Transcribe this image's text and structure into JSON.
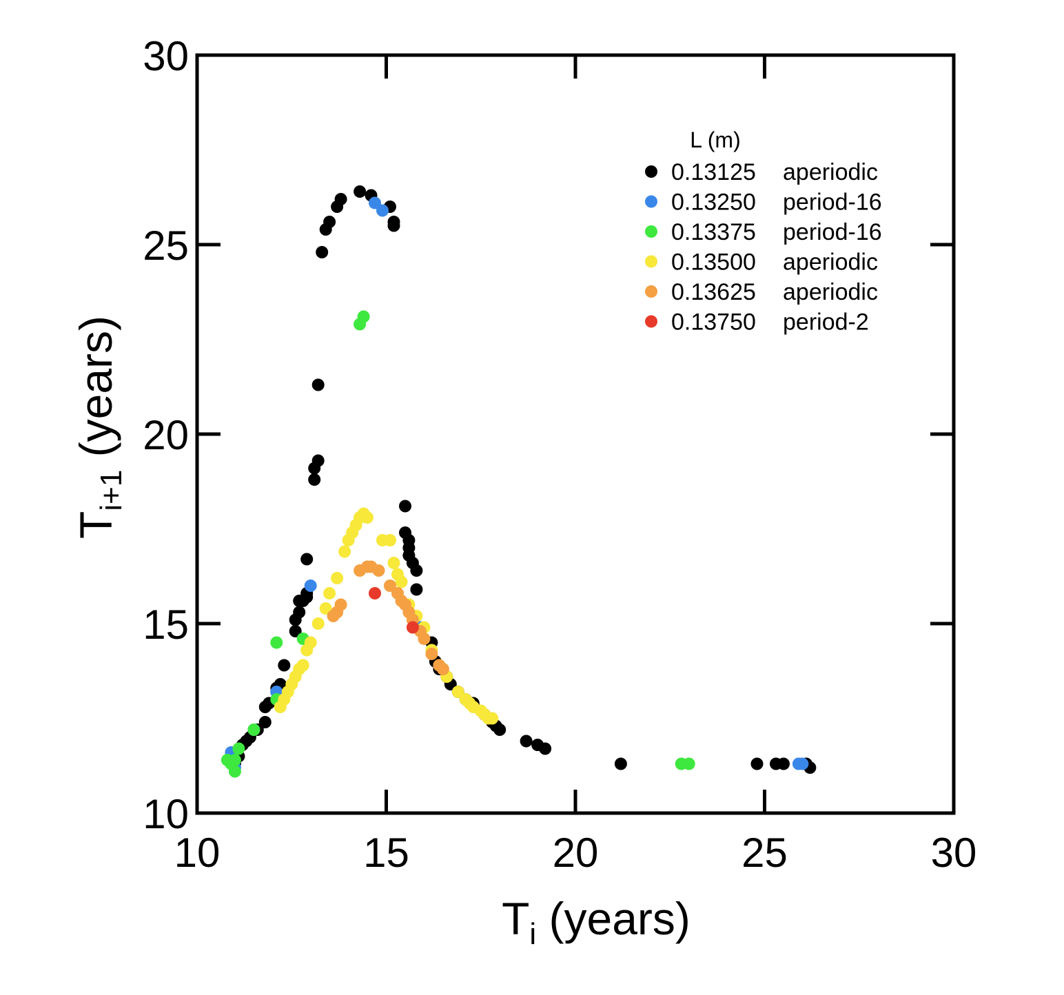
{
  "chart_data": {
    "type": "scatter",
    "title": "",
    "xlabel": {
      "main": "T",
      "sub": "i",
      "rest": " (years)"
    },
    "ylabel": {
      "main": "T",
      "sub": "i+1",
      "rest": " (years)"
    },
    "xlim": [
      10,
      30
    ],
    "ylim": [
      10,
      30
    ],
    "x_ticks": [
      10,
      15,
      20,
      25,
      30
    ],
    "y_ticks": [
      10,
      15,
      20,
      25,
      30
    ],
    "grid": false,
    "legend": {
      "placement": "top-right",
      "title": "L (m)"
    },
    "series": [
      {
        "name": "0.13125",
        "behavior": "aperiodic",
        "color": "#000000",
        "points": [
          [
            11.0,
            11.3
          ],
          [
            11.1,
            11.5
          ],
          [
            11.2,
            11.8
          ],
          [
            11.3,
            11.9
          ],
          [
            11.4,
            12.0
          ],
          [
            11.6,
            12.2
          ],
          [
            11.8,
            12.4
          ],
          [
            11.8,
            12.8
          ],
          [
            11.9,
            12.9
          ],
          [
            12.1,
            13.2
          ],
          [
            12.1,
            13.3
          ],
          [
            12.2,
            13.4
          ],
          [
            12.3,
            13.9
          ],
          [
            12.6,
            14.8
          ],
          [
            12.6,
            15.1
          ],
          [
            12.7,
            15.3
          ],
          [
            12.7,
            15.6
          ],
          [
            12.8,
            15.6
          ],
          [
            12.9,
            15.7
          ],
          [
            12.9,
            15.8
          ],
          [
            12.9,
            16.7
          ],
          [
            13.1,
            18.8
          ],
          [
            13.1,
            19.1
          ],
          [
            13.2,
            19.3
          ],
          [
            13.2,
            21.3
          ],
          [
            13.3,
            24.8
          ],
          [
            13.4,
            25.4
          ],
          [
            13.5,
            25.6
          ],
          [
            13.7,
            26.0
          ],
          [
            13.8,
            26.2
          ],
          [
            14.3,
            26.4
          ],
          [
            14.6,
            26.3
          ],
          [
            15.1,
            26.0
          ],
          [
            15.2,
            25.6
          ],
          [
            15.2,
            25.5
          ],
          [
            15.5,
            18.1
          ],
          [
            15.5,
            17.4
          ],
          [
            15.6,
            17.2
          ],
          [
            15.6,
            17.0
          ],
          [
            15.6,
            16.8
          ],
          [
            15.7,
            16.6
          ],
          [
            15.8,
            16.4
          ],
          [
            15.8,
            15.9
          ],
          [
            16.2,
            14.5
          ],
          [
            16.3,
            14.0
          ],
          [
            16.4,
            13.8
          ],
          [
            16.6,
            13.6
          ],
          [
            16.7,
            13.4
          ],
          [
            16.9,
            13.2
          ],
          [
            17.1,
            13.0
          ],
          [
            17.3,
            12.9
          ],
          [
            17.6,
            12.6
          ],
          [
            17.8,
            12.4
          ],
          [
            17.9,
            12.3
          ],
          [
            18.0,
            12.2
          ],
          [
            18.7,
            11.9
          ],
          [
            19.0,
            11.8
          ],
          [
            19.2,
            11.7
          ],
          [
            21.2,
            11.3
          ],
          [
            24.8,
            11.3
          ],
          [
            25.3,
            11.3
          ],
          [
            25.5,
            11.3
          ],
          [
            26.1,
            11.3
          ],
          [
            26.2,
            11.2
          ]
        ]
      },
      {
        "name": "0.13250",
        "behavior": "period-16",
        "color": "#3a87ea",
        "points": [
          [
            10.9,
            11.6
          ],
          [
            11.0,
            11.2
          ],
          [
            11.5,
            12.2
          ],
          [
            12.1,
            13.2
          ],
          [
            13.0,
            16.0
          ],
          [
            14.7,
            26.1
          ],
          [
            14.9,
            25.9
          ],
          [
            15.9,
            14.9
          ],
          [
            25.9,
            11.3
          ],
          [
            26.0,
            11.3
          ]
        ]
      },
      {
        "name": "0.13375",
        "behavior": "period-16",
        "color": "#3ee83e",
        "points": [
          [
            10.8,
            11.4
          ],
          [
            10.9,
            11.3
          ],
          [
            11.0,
            11.4
          ],
          [
            11.0,
            11.1
          ],
          [
            11.1,
            11.7
          ],
          [
            11.5,
            12.2
          ],
          [
            12.1,
            14.5
          ],
          [
            12.1,
            13.0
          ],
          [
            12.8,
            14.6
          ],
          [
            14.3,
            22.9
          ],
          [
            14.4,
            23.1
          ],
          [
            22.8,
            11.3
          ],
          [
            23.0,
            11.3
          ]
        ]
      },
      {
        "name": "0.13500",
        "behavior": "aperiodic",
        "color": "#f7e83a",
        "points": [
          [
            12.2,
            12.8
          ],
          [
            12.3,
            13.0
          ],
          [
            12.4,
            13.2
          ],
          [
            12.5,
            13.4
          ],
          [
            12.6,
            13.6
          ],
          [
            12.7,
            13.8
          ],
          [
            12.8,
            13.9
          ],
          [
            12.9,
            14.3
          ],
          [
            13.0,
            14.5
          ],
          [
            13.2,
            15.0
          ],
          [
            13.4,
            15.4
          ],
          [
            13.5,
            15.8
          ],
          [
            13.7,
            16.2
          ],
          [
            13.9,
            16.9
          ],
          [
            14.0,
            17.2
          ],
          [
            14.1,
            17.4
          ],
          [
            14.2,
            17.6
          ],
          [
            14.3,
            17.8
          ],
          [
            14.4,
            17.9
          ],
          [
            14.5,
            17.8
          ],
          [
            14.9,
            17.2
          ],
          [
            15.1,
            17.2
          ],
          [
            15.2,
            16.6
          ],
          [
            15.3,
            16.3
          ],
          [
            15.4,
            16.1
          ],
          [
            15.6,
            15.5
          ],
          [
            15.8,
            15.2
          ],
          [
            16.0,
            14.9
          ],
          [
            16.2,
            14.3
          ],
          [
            16.4,
            13.9
          ],
          [
            16.6,
            13.6
          ],
          [
            16.9,
            13.2
          ],
          [
            17.1,
            13.0
          ],
          [
            17.2,
            12.9
          ],
          [
            17.3,
            12.8
          ],
          [
            17.5,
            12.7
          ],
          [
            17.6,
            12.6
          ],
          [
            17.7,
            12.5
          ],
          [
            17.8,
            12.5
          ]
        ]
      },
      {
        "name": "0.13625",
        "behavior": "aperiodic",
        "color": "#f5a043",
        "points": [
          [
            13.6,
            15.2
          ],
          [
            13.7,
            15.3
          ],
          [
            13.8,
            15.5
          ],
          [
            14.3,
            16.4
          ],
          [
            14.5,
            16.5
          ],
          [
            14.6,
            16.5
          ],
          [
            14.8,
            16.4
          ],
          [
            15.1,
            16.0
          ],
          [
            15.3,
            15.8
          ],
          [
            15.4,
            15.6
          ],
          [
            15.5,
            15.5
          ],
          [
            15.6,
            15.3
          ],
          [
            15.7,
            15.1
          ],
          [
            15.9,
            14.8
          ],
          [
            16.0,
            14.6
          ],
          [
            16.2,
            14.2
          ],
          [
            16.4,
            13.9
          ],
          [
            16.5,
            13.8
          ]
        ]
      },
      {
        "name": "0.13750",
        "behavior": "period-2",
        "color": "#e83a2a",
        "points": [
          [
            14.7,
            15.8
          ],
          [
            15.7,
            14.9
          ]
        ]
      }
    ]
  }
}
